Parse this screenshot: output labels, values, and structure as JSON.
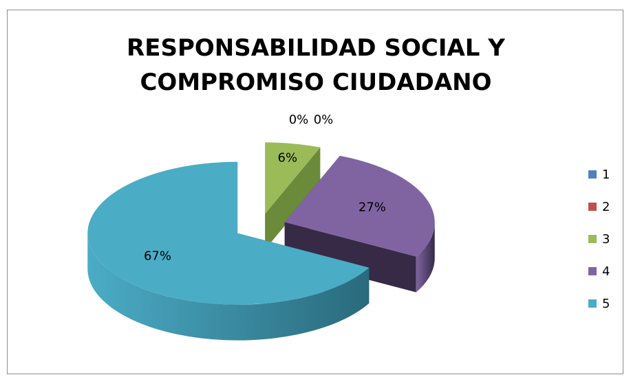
{
  "chart_data": {
    "type": "pie",
    "title_lines": [
      "RESPONSABILIDAD SOCIAL Y",
      "COMPROMISO CIUDADANO"
    ],
    "categories": [
      "1",
      "2",
      "3",
      "4",
      "5"
    ],
    "values": [
      0,
      0,
      6,
      27,
      67
    ],
    "data_labels": [
      "0%",
      "0%",
      "6%",
      "27%",
      "67%"
    ],
    "legend_position": "right",
    "style": "3d-exploded",
    "colors": {
      "1": "#4f81bd",
      "2": "#c0504d",
      "3": "#9bbb59",
      "4": "#8064a2",
      "5": "#4bacc6"
    },
    "side_colors": {
      "3": "#6b8a3a",
      "4": "#362a47",
      "5": "#2a6a7c"
    }
  }
}
